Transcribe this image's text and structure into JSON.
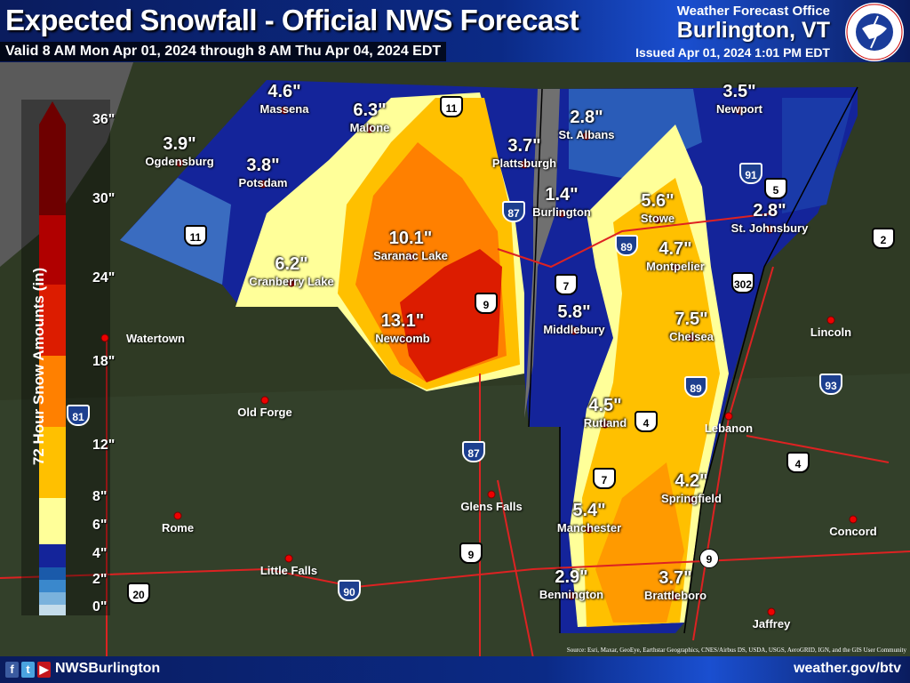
{
  "header": {
    "title": "Expected Snowfall - Official NWS Forecast",
    "valid": "Valid 8 AM Mon Apr 01, 2024 through 8 AM Thu Apr 04, 2024 EDT",
    "office_line": "Weather Forecast Office",
    "office_city": "Burlington, VT",
    "issued": "Issued Apr 01, 2024 1:01 PM EDT",
    "logo_text": "NATIONAL WEATHER SERVICE"
  },
  "legend": {
    "title": "72 Hour Snow Amounts (in)",
    "ticks": [
      "36\"",
      "30\"",
      "24\"",
      "18\"",
      "12\"",
      "8\"",
      "6\"",
      "4\"",
      "2\"",
      "0\""
    ],
    "colors": [
      "#6e0000",
      "#b00000",
      "#dc1c00",
      "#ff8000",
      "#ffc000",
      "#ffff99",
      "#14249a",
      "#1a5aaa",
      "#3a88cc",
      "#7ab2dc",
      "#c4dcea"
    ]
  },
  "forecasts": [
    {
      "name": "Massena",
      "amount": "4.6\""
    },
    {
      "name": "Ogdensburg",
      "amount": "3.9\""
    },
    {
      "name": "Potsdam",
      "amount": "3.8\""
    },
    {
      "name": "Malone",
      "amount": "6.3\""
    },
    {
      "name": "Plattsburgh",
      "amount": "3.7\""
    },
    {
      "name": "St. Albans",
      "amount": "2.8\""
    },
    {
      "name": "Newport",
      "amount": "3.5\""
    },
    {
      "name": "Burlington",
      "amount": "1.4\""
    },
    {
      "name": "Stowe",
      "amount": "5.6\""
    },
    {
      "name": "St. Johnsbury",
      "amount": "2.8\""
    },
    {
      "name": "Montpelier",
      "amount": "4.7\""
    },
    {
      "name": "Saranac Lake",
      "amount": "10.1\""
    },
    {
      "name": "Cranberry Lake",
      "amount": "6.2\""
    },
    {
      "name": "Newcomb",
      "amount": "13.1\""
    },
    {
      "name": "Middlebury",
      "amount": "5.8\""
    },
    {
      "name": "Chelsea",
      "amount": "7.5\""
    },
    {
      "name": "Rutland",
      "amount": "4.5\""
    },
    {
      "name": "Springfield",
      "amount": "4.2\""
    },
    {
      "name": "Manchester",
      "amount": "5.4\""
    },
    {
      "name": "Bennington",
      "amount": "2.9\""
    },
    {
      "name": "Brattleboro",
      "amount": "3.7\""
    }
  ],
  "towns": [
    "Watertown",
    "Old Forge",
    "Rome",
    "Little Falls",
    "Glens Falls",
    "Lebanon",
    "Lincoln",
    "Concord",
    "Jaffrey"
  ],
  "highways": [
    "11",
    "11",
    "87",
    "87",
    "9",
    "9",
    "89",
    "89",
    "91",
    "5",
    "2",
    "7",
    "7",
    "302",
    "4",
    "4",
    "93",
    "81",
    "90",
    "20",
    "9"
  ],
  "footer": {
    "social": [
      "f",
      "t",
      "▶"
    ],
    "handle": "NWSBurlington",
    "site": "weather.gov/btv",
    "source": "Source: Esri, Maxar, GeoEye, Earthstar Geographics, CNES/Airbus DS, USDA, USGS, AeroGRID, IGN, and the GIS User Community"
  }
}
